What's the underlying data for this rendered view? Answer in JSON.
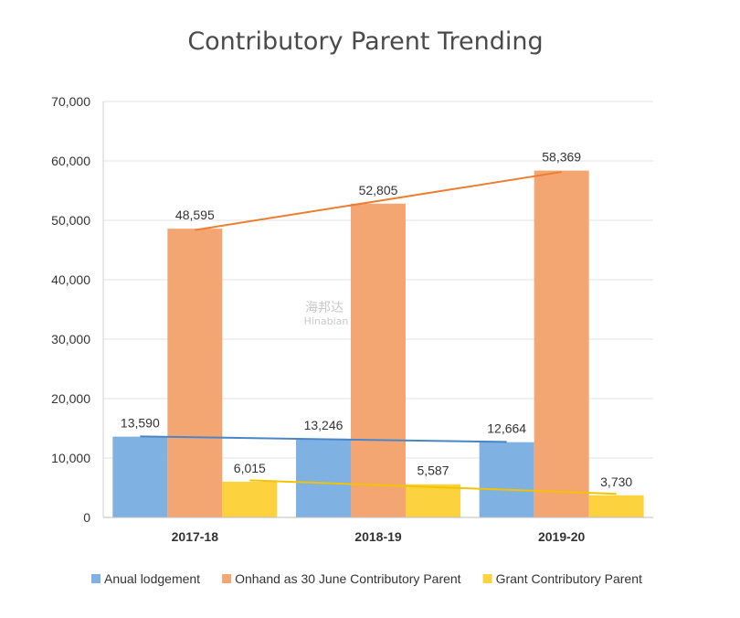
{
  "chart_data": {
    "type": "bar",
    "title": "Contributory Parent Trending",
    "categories": [
      "2017-18",
      "2018-19",
      "2019-20"
    ],
    "series": [
      {
        "name": "Anual lodgement",
        "color": "#7fb1e3",
        "values": [
          13590,
          13246,
          12664
        ],
        "labels": [
          "13,590",
          "13,246",
          "12,664"
        ],
        "trend_color": "#4a86c5"
      },
      {
        "name": "Onhand as 30 June Contributory Parent",
        "color": "#f4a672",
        "values": [
          48595,
          52805,
          58369
        ],
        "labels": [
          "48,595",
          "52,805",
          "58,369"
        ],
        "trend_color": "#ed7d31"
      },
      {
        "name": "Grant Contributory Parent",
        "color": "#fcd23f",
        "values": [
          6015,
          5587,
          3730
        ],
        "labels": [
          "6,015",
          "5,587",
          "3,730"
        ],
        "trend_color": "#f2c300"
      }
    ],
    "ylim": [
      0,
      70000
    ],
    "yticks": [
      0,
      10000,
      20000,
      30000,
      40000,
      50000,
      60000,
      70000
    ],
    "ytick_labels": [
      "0",
      "10,000",
      "20,000",
      "30,000",
      "40,000",
      "50,000",
      "60,000",
      "70,000"
    ],
    "trendlines": true,
    "grid": true,
    "xlabel": "",
    "ylabel": "",
    "legend_position": "bottom"
  },
  "watermark": {
    "text": "海邦达",
    "subtext": "Hinabian"
  }
}
